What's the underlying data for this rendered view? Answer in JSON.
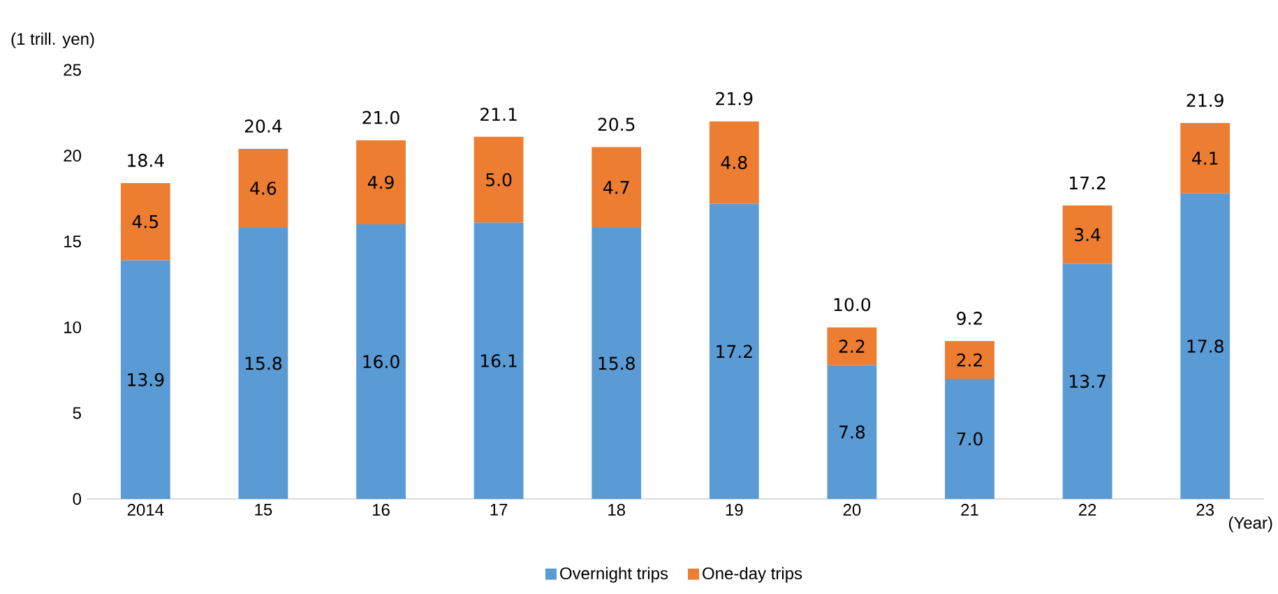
{
  "chart_data": {
    "type": "bar",
    "stacked": true,
    "ylabel": "(1 trill. yen)",
    "xlabel": "(Year)",
    "categories": [
      "2014",
      "15",
      "16",
      "17",
      "18",
      "19",
      "20",
      "21",
      "22",
      "23"
    ],
    "series": [
      {
        "name": "Overnight trips",
        "color": "#5b9bd5",
        "values": [
          13.9,
          15.8,
          16.0,
          16.1,
          15.8,
          17.2,
          7.8,
          7.0,
          13.7,
          17.8
        ],
        "value_labels": [
          "13.9",
          "15.8",
          "16.0",
          "16.1",
          "15.8",
          "17.2",
          "7.8",
          "7.0",
          "13.7",
          "17.8"
        ]
      },
      {
        "name": "One-day trips",
        "color": "#ed7d31",
        "values": [
          4.5,
          4.6,
          4.9,
          5.0,
          4.7,
          4.8,
          2.2,
          2.2,
          3.4,
          4.1
        ],
        "value_labels": [
          "4.5",
          "4.6",
          "4.9",
          "5.0",
          "4.7",
          "4.8",
          "2.2",
          "2.2",
          "3.4",
          "4.1"
        ]
      }
    ],
    "totals": [
      "18.4",
      "20.4",
      "21.0",
      "21.1",
      "20.5",
      "21.9",
      "10.0",
      "9.2",
      "17.2",
      "21.9"
    ],
    "ylim": [
      0,
      25
    ],
    "yticks": [
      0,
      5,
      10,
      15,
      20,
      25
    ],
    "grid": false,
    "legend": "bottom"
  }
}
